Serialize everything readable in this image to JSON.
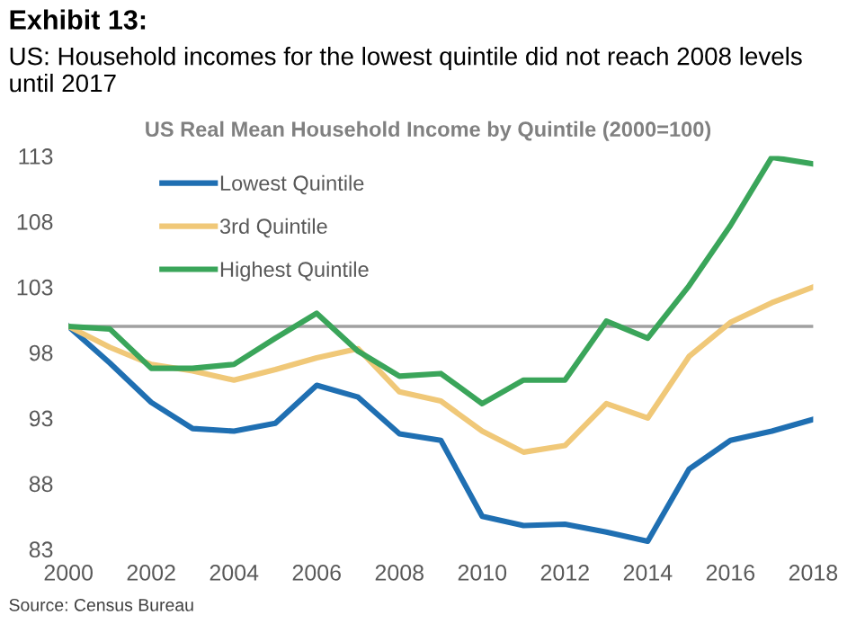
{
  "chart_data": {
    "type": "line",
    "title": "Exhibit 13:",
    "subtitle": "US: Household incomes for the lowest quintile did not reach 2008 levels until 2017",
    "annotations": [
      "US Real Mean Household Income by Quintile (2000=100)",
      "Source: Census Bureau"
    ],
    "x": [
      2000,
      2001,
      2002,
      2003,
      2004,
      2005,
      2006,
      2007,
      2008,
      2009,
      2010,
      2011,
      2012,
      2013,
      2014,
      2015,
      2016,
      2017,
      2018
    ],
    "series": [
      {
        "name": "Lowest Quintile",
        "color": "#1f6fb2",
        "values": [
          100,
          97.2,
          94.2,
          92.2,
          92.0,
          92.6,
          95.5,
          94.6,
          91.8,
          91.3,
          85.5,
          84.8,
          84.9,
          84.3,
          83.6,
          89.1,
          91.3,
          92.0,
          92.9
        ]
      },
      {
        "name": "3rd Quintile",
        "color": "#f0c878",
        "values": [
          100,
          98.4,
          97.1,
          96.6,
          95.9,
          96.7,
          97.6,
          98.3,
          95.0,
          94.3,
          92.0,
          90.4,
          90.9,
          94.1,
          93.0,
          97.7,
          100.3,
          101.8,
          103.0
        ]
      },
      {
        "name": "Highest Quintile",
        "color": "#3aa55a",
        "values": [
          100,
          99.8,
          96.8,
          96.8,
          97.1,
          99.1,
          101.0,
          98.1,
          96.2,
          96.4,
          94.1,
          95.9,
          95.9,
          100.4,
          99.1,
          103.1,
          107.7,
          112.9,
          112.4
        ]
      }
    ],
    "xlim": [
      2000,
      2018
    ],
    "xticks": [
      2000,
      2002,
      2004,
      2006,
      2008,
      2010,
      2012,
      2014,
      2016,
      2018
    ],
    "ylim": [
      83,
      113
    ],
    "yticks": [
      83,
      88,
      93,
      98,
      103,
      108,
      113
    ],
    "ref_lines": [
      {
        "axis": "y",
        "value": 100,
        "color": "#a0a0a0"
      }
    ],
    "grid": false,
    "legend": "top left",
    "marker": "none",
    "line_style": "solid"
  }
}
